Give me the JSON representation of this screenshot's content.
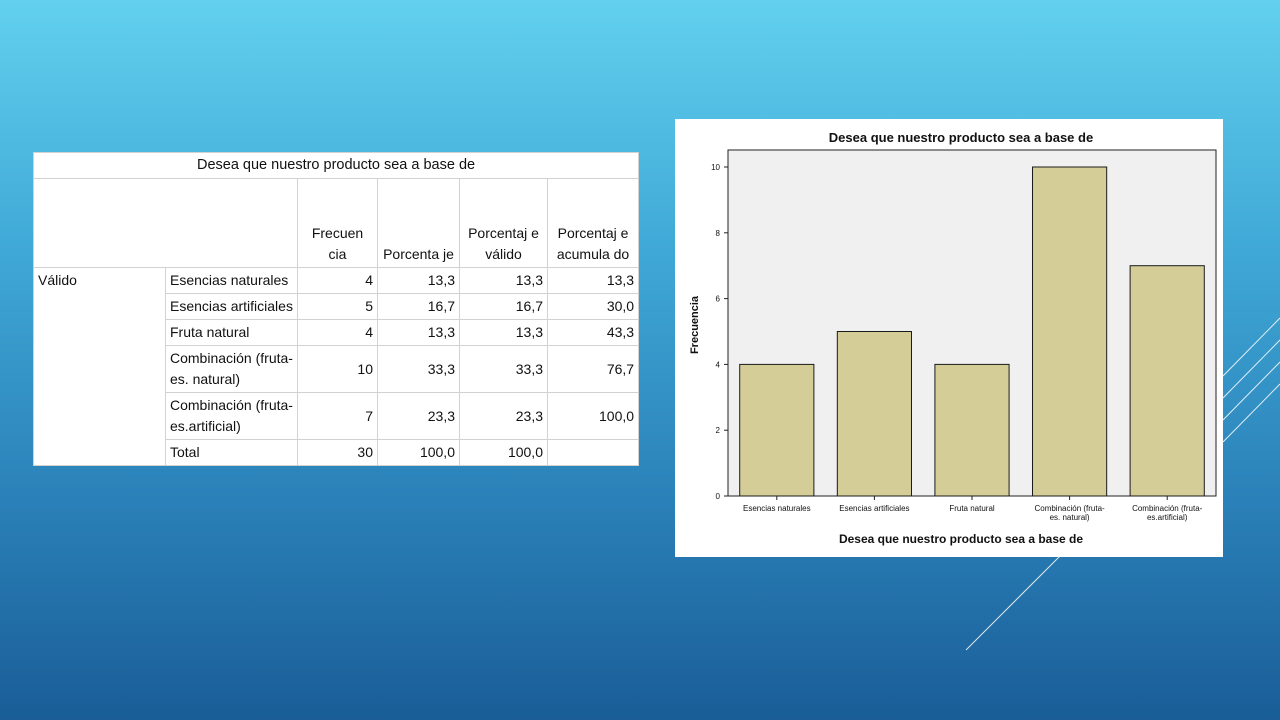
{
  "table": {
    "title": "Desea que nuestro producto sea a base de",
    "headers": [
      "Frecuen cia",
      "Porcenta je",
      "Porcentaj e válido",
      "Porcentaj e acumula do"
    ],
    "group_label": "Válido",
    "rows": [
      {
        "label": "Esencias naturales",
        "frecuencia": "4",
        "porcentaje": "13,3",
        "valido": "13,3",
        "acumulado": "13,3"
      },
      {
        "label": "Esencias artificiales",
        "frecuencia": "5",
        "porcentaje": "16,7",
        "valido": "16,7",
        "acumulado": "30,0"
      },
      {
        "label": "Fruta natural",
        "frecuencia": "4",
        "porcentaje": "13,3",
        "valido": "13,3",
        "acumulado": "43,3"
      },
      {
        "label": "Combinación (fruta-es. natural)",
        "frecuencia": "10",
        "porcentaje": "33,3",
        "valido": "33,3",
        "acumulado": "76,7"
      },
      {
        "label": "Combinación (fruta-es.artificial)",
        "frecuencia": "7",
        "porcentaje": "23,3",
        "valido": "23,3",
        "acumulado": "100,0"
      }
    ],
    "total": {
      "label": "Total",
      "frecuencia": "30",
      "porcentaje": "100,0",
      "valido": "100,0",
      "acumulado": ""
    }
  },
  "chart_data": {
    "type": "bar",
    "title": "Desea que nuestro producto sea a base de",
    "xlabel": "Desea que nuestro producto sea a base de",
    "ylabel": "Frecuencia",
    "categories": [
      "Esencias naturales",
      "Esencias artificiales",
      "Fruta natural",
      "Combinación (fruta-es. natural)",
      "Combinación (fruta-es.artificial)"
    ],
    "category_label_lines": [
      [
        "Esencias naturales"
      ],
      [
        "Esencias artificiales"
      ],
      [
        "Fruta natural"
      ],
      [
        "Combinación (fruta-",
        "es. natural)"
      ],
      [
        "Combinación (fruta-",
        "es.artificial)"
      ]
    ],
    "values": [
      4,
      5,
      4,
      10,
      7
    ],
    "ylim": [
      0,
      10
    ],
    "yticks": [
      0,
      2,
      4,
      6,
      8,
      10
    ],
    "grid": false,
    "colors": {
      "bar_fill": "#d4cd97",
      "bar_stroke": "#1a1a1a",
      "plot_bg": "#f0f0f0"
    }
  }
}
